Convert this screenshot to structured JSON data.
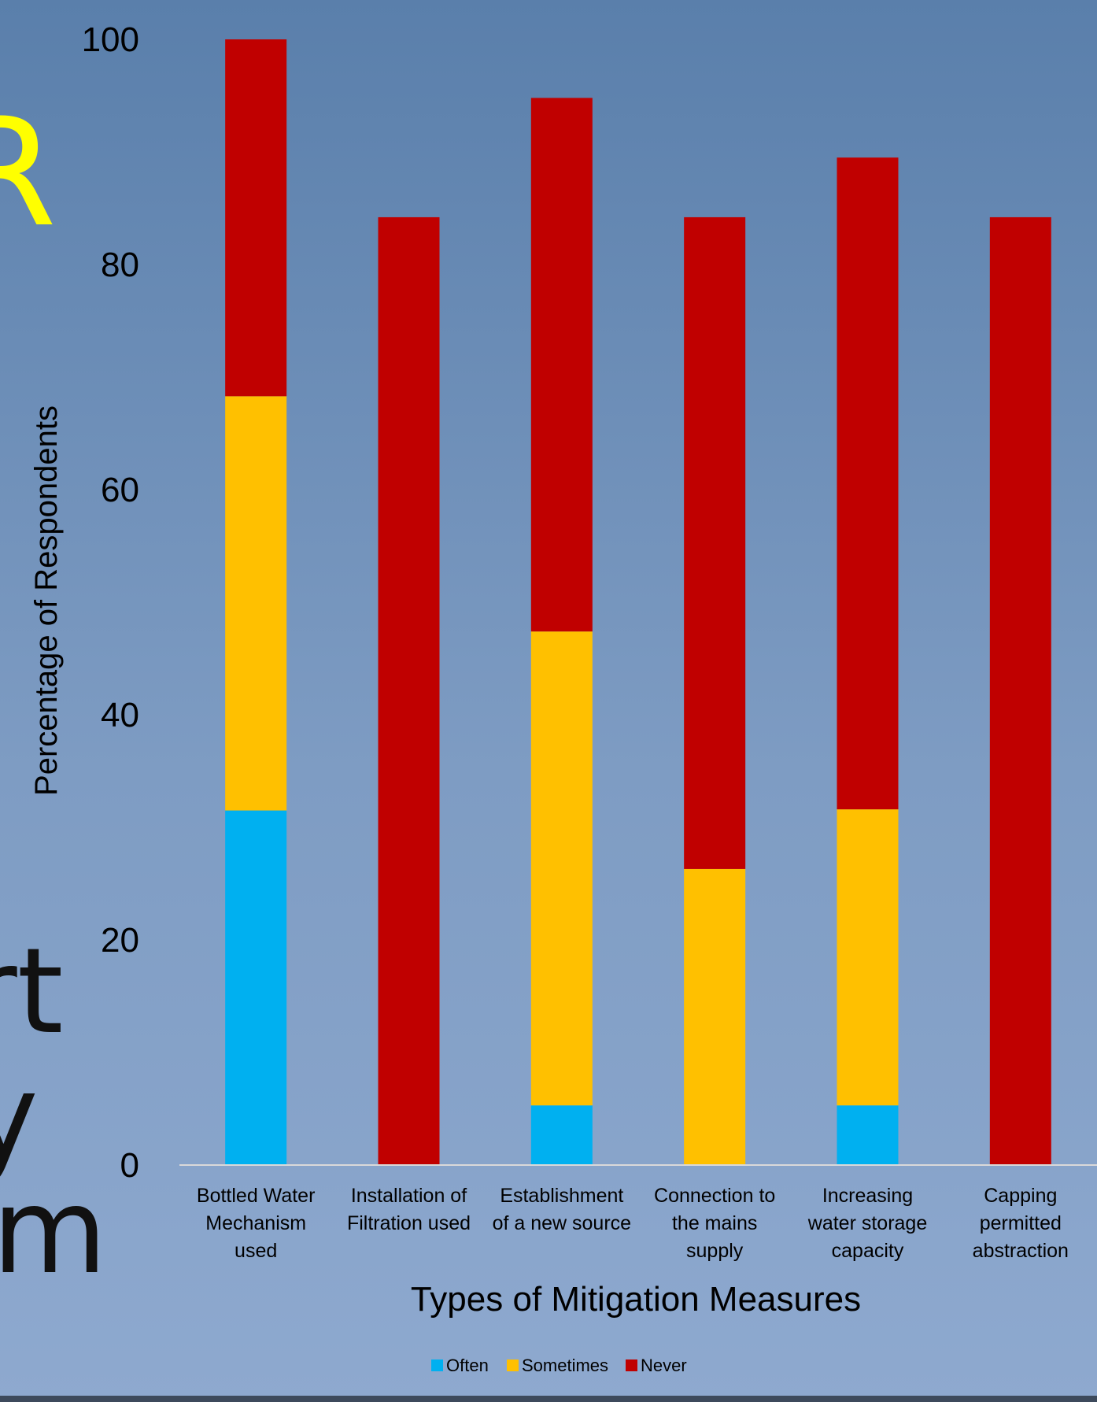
{
  "background": {
    "fragments": [
      "R",
      "rt",
      "y",
      "m"
    ],
    "colors": {
      "accent_letter": "#ffff00",
      "dark_letter": "#111111"
    }
  },
  "chart_data": {
    "type": "bar",
    "stacked": true,
    "categories": [
      [
        "Bottled Water",
        "Mechanism",
        "used"
      ],
      [
        "Installation of",
        "Filtration used"
      ],
      [
        "Establishment",
        "of a new source"
      ],
      [
        "Connection to",
        "the mains",
        "supply"
      ],
      [
        "Increasing",
        "water storage",
        "capacity"
      ],
      [
        "Capping",
        "permitted",
        "abstraction"
      ]
    ],
    "series": [
      {
        "name": "Often",
        "color": "#00b0f0",
        "values": [
          31.5,
          0,
          5.3,
          0,
          5.3,
          0
        ]
      },
      {
        "name": "Sometimes",
        "color": "#ffc000",
        "values": [
          36.8,
          0,
          42.1,
          26.3,
          26.3,
          0
        ]
      },
      {
        "name": "Never",
        "color": "#c00000",
        "values": [
          31.7,
          84.2,
          47.4,
          57.9,
          57.9,
          84.2
        ]
      }
    ],
    "title": "",
    "xlabel": "Types of Mitigation Measures",
    "ylabel": "Percentage of Respondents",
    "ylim": [
      0,
      100
    ],
    "yticks": [
      "0",
      "20",
      "40",
      "60",
      "80",
      "100"
    ],
    "grid": false,
    "legend_position": "bottom"
  }
}
